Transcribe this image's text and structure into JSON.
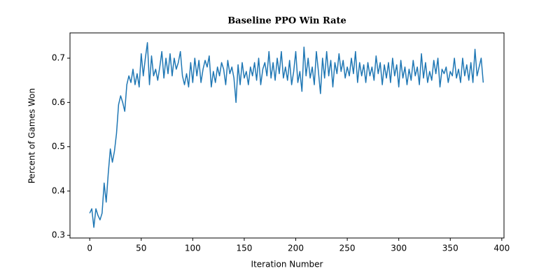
{
  "chart_data": {
    "type": "line",
    "title": "Baseline PPO Win Rate",
    "xlabel": "Iteration Number",
    "ylabel": "Percent of Games Won",
    "color": "#1f77b4",
    "x": [
      0,
      2,
      4,
      6,
      8,
      10,
      12,
      14,
      16,
      18,
      20,
      22,
      24,
      26,
      28,
      30,
      32,
      34,
      36,
      38,
      40,
      42,
      44,
      46,
      48,
      50,
      52,
      54,
      56,
      58,
      60,
      62,
      64,
      66,
      68,
      70,
      72,
      74,
      76,
      78,
      80,
      82,
      84,
      86,
      88,
      90,
      92,
      94,
      96,
      98,
      100,
      102,
      104,
      106,
      108,
      110,
      112,
      114,
      116,
      118,
      120,
      122,
      124,
      126,
      128,
      130,
      132,
      134,
      136,
      138,
      140,
      142,
      144,
      146,
      148,
      150,
      152,
      154,
      156,
      158,
      160,
      162,
      164,
      166,
      168,
      170,
      172,
      174,
      176,
      178,
      180,
      182,
      184,
      186,
      188,
      190,
      192,
      194,
      196,
      198,
      200,
      202,
      204,
      206,
      208,
      210,
      212,
      214,
      216,
      218,
      220,
      222,
      224,
      226,
      228,
      230,
      232,
      234,
      236,
      238,
      240,
      242,
      244,
      246,
      248,
      250,
      252,
      254,
      256,
      258,
      260,
      262,
      264,
      266,
      268,
      270,
      272,
      274,
      276,
      278,
      280,
      282,
      284,
      286,
      288,
      290,
      292,
      294,
      296,
      298,
      300,
      302,
      304,
      306,
      308,
      310,
      312,
      314,
      316,
      318,
      320,
      322,
      324,
      326,
      328,
      330,
      332,
      334,
      336,
      338,
      340,
      342,
      344,
      346,
      348,
      350,
      352,
      354,
      356,
      358,
      360,
      362,
      364,
      366,
      368,
      370,
      372,
      374,
      376,
      378,
      380,
      382
    ],
    "values": [
      0.35,
      0.36,
      0.318,
      0.36,
      0.345,
      0.335,
      0.35,
      0.418,
      0.375,
      0.44,
      0.495,
      0.465,
      0.49,
      0.53,
      0.595,
      0.615,
      0.6,
      0.58,
      0.64,
      0.66,
      0.645,
      0.675,
      0.64,
      0.665,
      0.635,
      0.71,
      0.66,
      0.7,
      0.735,
      0.64,
      0.705,
      0.66,
      0.675,
      0.65,
      0.68,
      0.715,
      0.655,
      0.7,
      0.665,
      0.71,
      0.66,
      0.7,
      0.675,
      0.69,
      0.715,
      0.66,
      0.64,
      0.665,
      0.635,
      0.69,
      0.645,
      0.7,
      0.66,
      0.695,
      0.645,
      0.675,
      0.695,
      0.68,
      0.705,
      0.635,
      0.67,
      0.645,
      0.68,
      0.66,
      0.69,
      0.675,
      0.64,
      0.695,
      0.665,
      0.68,
      0.655,
      0.6,
      0.685,
      0.64,
      0.69,
      0.655,
      0.67,
      0.64,
      0.68,
      0.66,
      0.69,
      0.65,
      0.7,
      0.64,
      0.675,
      0.69,
      0.66,
      0.715,
      0.655,
      0.69,
      0.65,
      0.7,
      0.665,
      0.715,
      0.655,
      0.68,
      0.65,
      0.695,
      0.64,
      0.67,
      0.715,
      0.645,
      0.67,
      0.625,
      0.725,
      0.66,
      0.7,
      0.655,
      0.68,
      0.64,
      0.715,
      0.67,
      0.62,
      0.7,
      0.655,
      0.715,
      0.66,
      0.695,
      0.635,
      0.69,
      0.665,
      0.71,
      0.67,
      0.695,
      0.655,
      0.68,
      0.66,
      0.7,
      0.665,
      0.715,
      0.645,
      0.69,
      0.66,
      0.685,
      0.645,
      0.69,
      0.66,
      0.68,
      0.65,
      0.705,
      0.665,
      0.69,
      0.64,
      0.685,
      0.655,
      0.69,
      0.645,
      0.7,
      0.66,
      0.685,
      0.635,
      0.695,
      0.655,
      0.68,
      0.64,
      0.675,
      0.65,
      0.695,
      0.66,
      0.68,
      0.64,
      0.71,
      0.655,
      0.69,
      0.645,
      0.67,
      0.65,
      0.695,
      0.665,
      0.7,
      0.635,
      0.675,
      0.665,
      0.68,
      0.645,
      0.67,
      0.66,
      0.7,
      0.655,
      0.675,
      0.645,
      0.7,
      0.66,
      0.685,
      0.65,
      0.69,
      0.645,
      0.72,
      0.66,
      0.68,
      0.7,
      0.645
    ],
    "xlim": [
      -19.15,
      402.15
    ],
    "xticks": [
      0,
      50,
      100,
      150,
      200,
      250,
      300,
      350,
      400
    ],
    "ylim": [
      0.294,
      0.757
    ],
    "yticks": [
      0.3,
      0.4,
      0.5,
      0.6,
      0.7
    ]
  }
}
